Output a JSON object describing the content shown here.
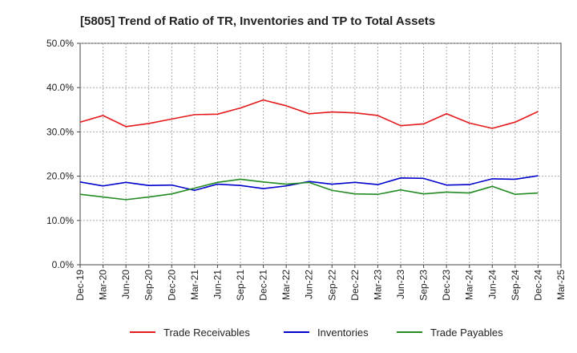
{
  "chart_data": {
    "type": "line",
    "title": "[5805]  Trend of Ratio of TR, Inventories and TP to Total Assets",
    "xlabel": "",
    "ylabel": "",
    "x": [
      "Dec-19",
      "Mar-20",
      "Jun-20",
      "Sep-20",
      "Dec-20",
      "Mar-21",
      "Jun-21",
      "Sep-21",
      "Dec-21",
      "Mar-22",
      "Jun-22",
      "Sep-22",
      "Dec-22",
      "Mar-23",
      "Jun-23",
      "Sep-23",
      "Dec-23",
      "Mar-24",
      "Jun-24",
      "Sep-24",
      "Dec-24",
      "Mar-25"
    ],
    "ylim": [
      0,
      50
    ],
    "yticks": [
      0,
      10,
      20,
      30,
      40,
      50
    ],
    "ytick_labels": [
      "0.0%",
      "10.0%",
      "20.0%",
      "30.0%",
      "40.0%",
      "50.0%"
    ],
    "grid": true,
    "legend_position": "bottom",
    "series": [
      {
        "name": "Trade Receivables",
        "color": "#e41a1c",
        "values": [
          32.2,
          33.7,
          31.2,
          31.9,
          32.9,
          33.9,
          34.0,
          35.4,
          37.2,
          35.9,
          34.1,
          34.5,
          34.3,
          33.7,
          31.4,
          31.8,
          34.1,
          32.0,
          30.8,
          32.2,
          34.6,
          null
        ]
      },
      {
        "name": "Inventories",
        "color": "#0000cc",
        "values": [
          18.7,
          17.8,
          18.6,
          17.9,
          18.0,
          16.8,
          18.2,
          17.9,
          17.2,
          17.8,
          18.8,
          18.2,
          18.6,
          18.1,
          19.6,
          19.5,
          18.0,
          18.1,
          19.4,
          19.3,
          20.1,
          null
        ]
      },
      {
        "name": "Trade Payables",
        "color": "#228b22",
        "values": [
          15.9,
          15.3,
          14.7,
          15.3,
          16.0,
          17.3,
          18.6,
          19.3,
          18.7,
          18.2,
          18.6,
          16.8,
          16.0,
          15.9,
          16.9,
          16.0,
          16.4,
          16.2,
          17.7,
          15.9,
          16.2,
          null
        ]
      }
    ]
  }
}
